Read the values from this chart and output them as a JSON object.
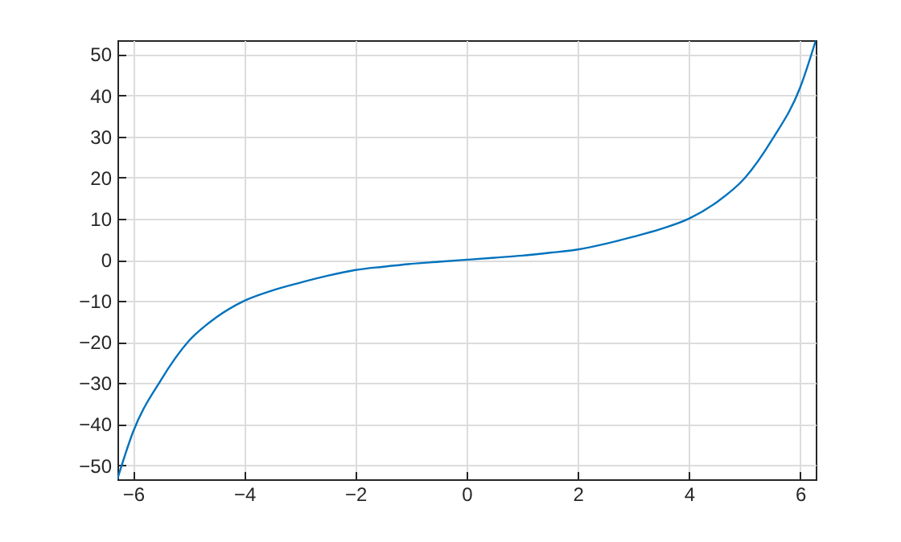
{
  "chart_data": {
    "type": "line",
    "x": [
      -6.28,
      -6,
      -5.5,
      -5,
      -4.5,
      -4,
      -3.5,
      -3,
      -2.5,
      -2,
      -1.5,
      -1,
      -0.5,
      0,
      0.5,
      1,
      1.5,
      2,
      2.5,
      3,
      3.5,
      4,
      4.5,
      5,
      5.5,
      6,
      6.28
    ],
    "series": [
      {
        "color": "#0072bd",
        "values": [
          -53.3,
          -41.9,
          -29.3,
          -19.8,
          -14,
          -10,
          -7.5,
          -5.6,
          -3.9,
          -2.5,
          -1.7,
          -1,
          -0.5,
          0,
          0.5,
          1,
          1.7,
          2.5,
          3.9,
          5.6,
          7.5,
          10,
          14,
          19.8,
          29.3,
          41.9,
          53.3
        ]
      }
    ],
    "xlim": [
      -6.28,
      6.28
    ],
    "ylim": [
      -53.4,
      53.4
    ],
    "xticks": [
      -6,
      -4,
      -2,
      0,
      2,
      4,
      6
    ],
    "yticks": [
      -50,
      -40,
      -30,
      -20,
      -10,
      0,
      10,
      20,
      30,
      40,
      50
    ],
    "grid": true,
    "marker": "none",
    "line_style": "solid"
  }
}
